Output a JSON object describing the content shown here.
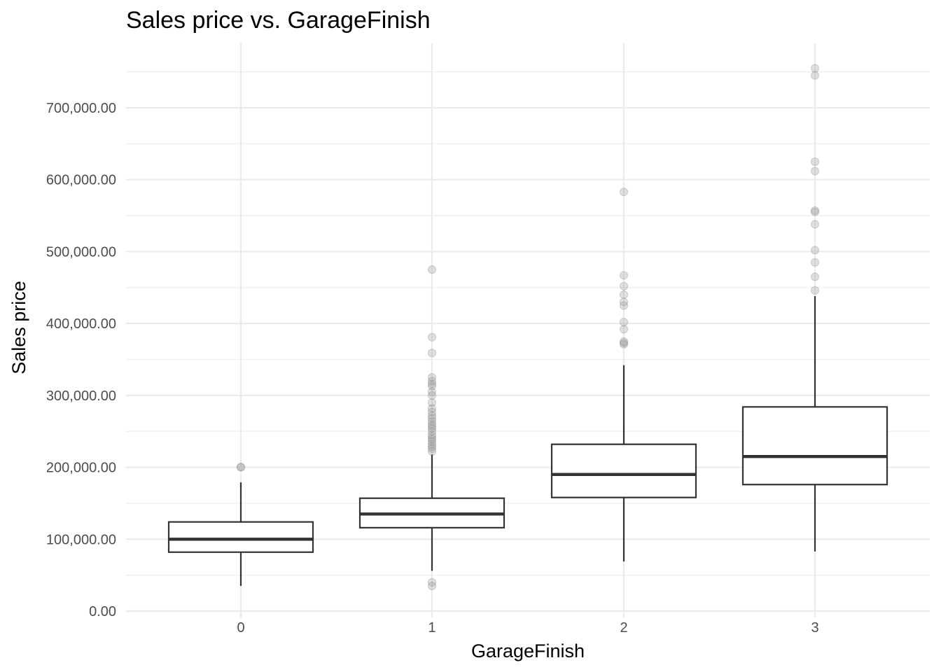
{
  "chart_data": {
    "type": "boxplot",
    "title": "Sales price vs. GarageFinish",
    "xlabel": "GarageFinish",
    "ylabel": "Sales price",
    "categories": [
      "0",
      "1",
      "2",
      "3"
    ],
    "ylim": [
      -2000,
      765000
    ],
    "y_ticks": [
      0,
      100000,
      200000,
      300000,
      400000,
      500000,
      600000,
      700000
    ],
    "y_tick_labels": [
      "0.00",
      "100,000.00",
      "200,000.00",
      "300,000.00",
      "400,000.00",
      "500,000.00",
      "600,000.00",
      "700,000.00"
    ],
    "grid": true,
    "boxes": [
      {
        "category": "0",
        "whisker_low": 35000,
        "q1": 82000,
        "median": 100000,
        "q3": 124000,
        "whisker_high": 179000,
        "outliers": [
          200000,
          200500
        ]
      },
      {
        "category": "1",
        "whisker_low": 56000,
        "q1": 116000,
        "median": 135000,
        "q3": 157000,
        "whisker_high": 218000,
        "outliers": [
          35000,
          40000,
          222000,
          226000,
          229000,
          232000,
          236000,
          239000,
          242000,
          245000,
          250000,
          254000,
          257000,
          260000,
          264000,
          268000,
          272000,
          277000,
          282000,
          290000,
          300000,
          305000,
          313000,
          316000,
          320000,
          325000,
          359000,
          381000,
          475000
        ]
      },
      {
        "category": "2",
        "whisker_low": 69000,
        "q1": 158000,
        "median": 190000,
        "q3": 232000,
        "whisker_high": 342000,
        "outliers": [
          371000,
          373000,
          375000,
          392000,
          402000,
          425000,
          430000,
          440000,
          452000,
          467000,
          583000
        ]
      },
      {
        "category": "3",
        "whisker_low": 83000,
        "q1": 176000,
        "median": 215000,
        "q3": 284000,
        "whisker_high": 438000,
        "outliers": [
          446000,
          465000,
          485000,
          502000,
          538000,
          555000,
          557000,
          612000,
          625000,
          745000,
          755000
        ]
      }
    ]
  }
}
